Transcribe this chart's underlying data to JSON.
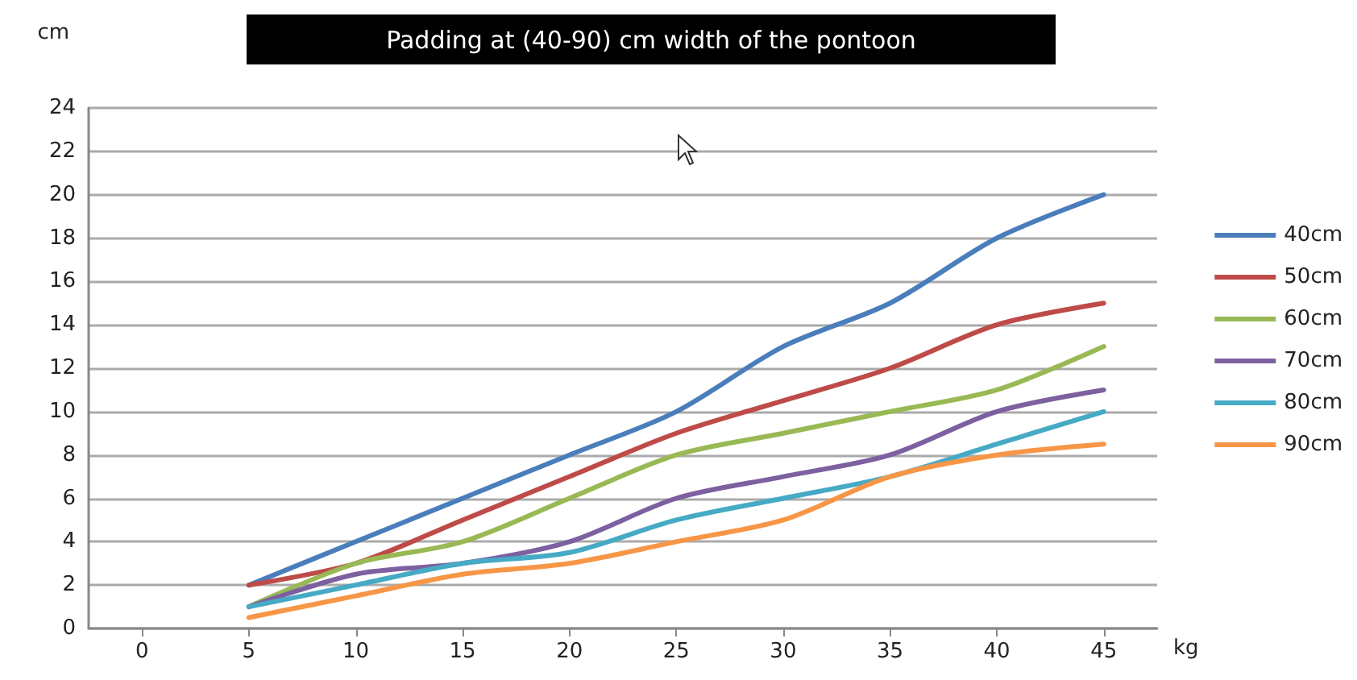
{
  "chart_data": {
    "type": "line",
    "title": "Padding at (40-90) cm width of the pontoon",
    "xlabel": "kg",
    "ylabel": "cm",
    "categories": [
      "0",
      "5",
      "10",
      "15",
      "20",
      "25",
      "30",
      "35",
      "40",
      "45"
    ],
    "series": [
      {
        "name": "40cm",
        "color": "#4a7ebb",
        "values": [
          null,
          2,
          4,
          6,
          8,
          10,
          13,
          15,
          18,
          20
        ]
      },
      {
        "name": "50cm",
        "color": "#be4b48",
        "values": [
          null,
          2,
          3,
          5,
          7,
          9,
          10.5,
          12,
          14,
          15
        ]
      },
      {
        "name": "60cm",
        "color": "#98b954",
        "values": [
          null,
          1,
          3,
          4,
          6,
          8,
          9,
          10,
          11,
          13
        ]
      },
      {
        "name": "70cm",
        "color": "#7d60a0",
        "values": [
          null,
          1,
          2.5,
          3,
          4,
          6,
          7,
          8,
          10,
          11
        ]
      },
      {
        "name": "80cm",
        "color": "#46aac5",
        "values": [
          null,
          1,
          2,
          3,
          3.5,
          5,
          6,
          7,
          8.5,
          10
        ]
      },
      {
        "name": "90cm",
        "color": "#f79646",
        "values": [
          null,
          0.5,
          1.5,
          2.5,
          3,
          4,
          5,
          7,
          8,
          8.5
        ]
      }
    ],
    "ylim": [
      0,
      24
    ],
    "yticks": [
      0,
      2,
      4,
      6,
      8,
      10,
      12,
      14,
      16,
      18,
      20,
      22,
      24
    ],
    "grid": "y",
    "legend": "right",
    "marker": "none",
    "line_style": "solid"
  }
}
